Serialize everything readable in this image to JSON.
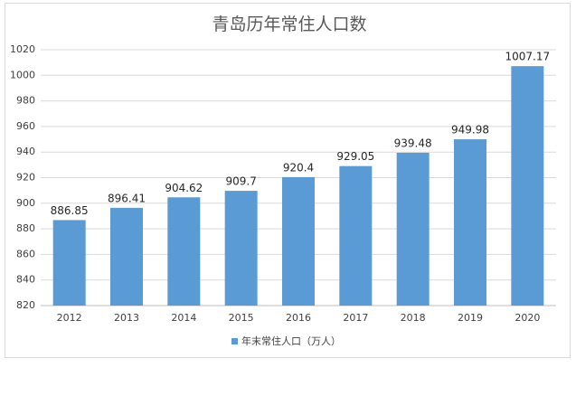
{
  "chart_data": {
    "type": "bar",
    "title": "青岛历年常住人口数",
    "categories": [
      "2012",
      "2013",
      "2014",
      "2015",
      "2016",
      "2017",
      "2018",
      "2019",
      "2020"
    ],
    "series": [
      {
        "name": "年末常住人口（万人）",
        "color": "#5b9bd5",
        "values": [
          886.85,
          896.41,
          904.62,
          909.7,
          920.4,
          929.05,
          939.48,
          949.98,
          1007.17
        ]
      }
    ],
    "ylim": [
      820,
      1020
    ],
    "yticks": [
      820,
      840,
      860,
      880,
      900,
      920,
      940,
      960,
      980,
      1000,
      1020
    ],
    "grid": true,
    "legend": "bottom"
  }
}
